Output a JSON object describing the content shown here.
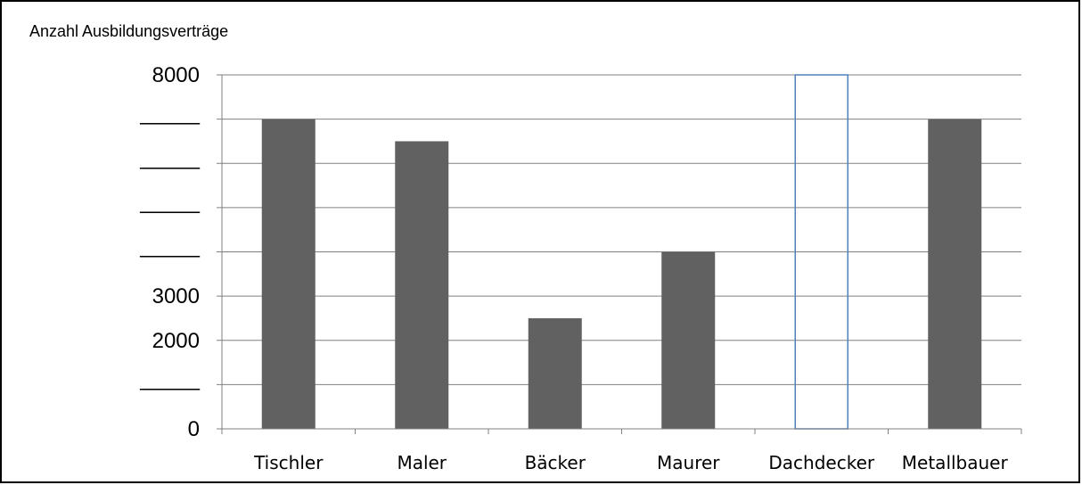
{
  "chart_data": {
    "type": "bar",
    "ylabel": "Anzahl Ausbildungsverträge",
    "categories": [
      "Tischler",
      "Maler",
      "Bäcker",
      "Maurer",
      "Dachdecker",
      "Metallbauer"
    ],
    "values": [
      7000,
      6500,
      2500,
      4000,
      8000,
      7000
    ],
    "bar_styles": [
      "filled",
      "filled",
      "filled",
      "filled",
      "outline",
      "filled"
    ],
    "ylim": [
      0,
      8000
    ],
    "gridline_step": 1000,
    "y_ticks": [
      {
        "value": 8000,
        "label": "8000"
      },
      {
        "value": 7000,
        "label": "_____"
      },
      {
        "value": 6000,
        "label": "_____"
      },
      {
        "value": 5000,
        "label": "_____"
      },
      {
        "value": 4000,
        "label": "_____"
      },
      {
        "value": 3000,
        "label": "3000"
      },
      {
        "value": 2000,
        "label": "2000"
      },
      {
        "value": 1000,
        "label": "_____"
      },
      {
        "value": 0,
        "label": "0"
      }
    ],
    "grid": true,
    "colors": {
      "bar_fill": "#616161",
      "outline_bar": "#4f81bd",
      "grid": "#808080",
      "axis": "#808080"
    }
  }
}
